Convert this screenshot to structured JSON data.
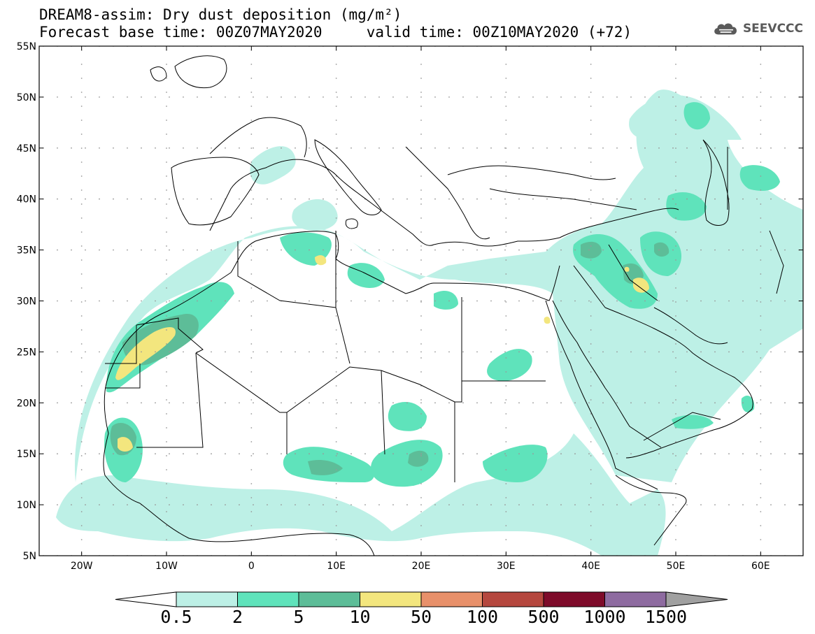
{
  "title": {
    "line1": "DREAM8-assim: Dry dust deposition (mg/m²)",
    "line2": "Forecast base time: 00Z07MAY2020     valid time: 00Z10MAY2020 (+72)"
  },
  "logo": {
    "text": "SEEVCCC",
    "icon": "cloud-icon"
  },
  "map": {
    "lat_ticks": [
      {
        "value": 55,
        "label": "55N"
      },
      {
        "value": 50,
        "label": "50N"
      },
      {
        "value": 45,
        "label": "45N"
      },
      {
        "value": 40,
        "label": "40N"
      },
      {
        "value": 35,
        "label": "35N"
      },
      {
        "value": 30,
        "label": "30N"
      },
      {
        "value": 25,
        "label": "25N"
      },
      {
        "value": 20,
        "label": "20N"
      },
      {
        "value": 15,
        "label": "15N"
      },
      {
        "value": 10,
        "label": "10N"
      },
      {
        "value": 5,
        "label": "5N"
      }
    ],
    "lon_ticks": [
      {
        "value": -20,
        "label": "20W"
      },
      {
        "value": -10,
        "label": "10W"
      },
      {
        "value": 0,
        "label": "0"
      },
      {
        "value": 10,
        "label": "10E"
      },
      {
        "value": 20,
        "label": "20E"
      },
      {
        "value": 30,
        "label": "30E"
      },
      {
        "value": 40,
        "label": "40E"
      },
      {
        "value": 50,
        "label": "50E"
      },
      {
        "value": 60,
        "label": "60E"
      }
    ],
    "lon_range": [
      -25,
      65
    ],
    "lat_range": [
      5,
      55
    ],
    "land_outline_color": "#000000"
  },
  "colorbar": {
    "colors": [
      "#bdf0e6",
      "#5fe3bb",
      "#5dbd98",
      "#f3e67e",
      "#e8906a",
      "#b5473e",
      "#7e0b2a",
      "#8e6ba0"
    ],
    "under_color": "#ffffff",
    "over_color": "#a0a0a0",
    "labels": [
      "0.5",
      "2",
      "5",
      "10",
      "50",
      "100",
      "500",
      "1000",
      "1500"
    ]
  }
}
